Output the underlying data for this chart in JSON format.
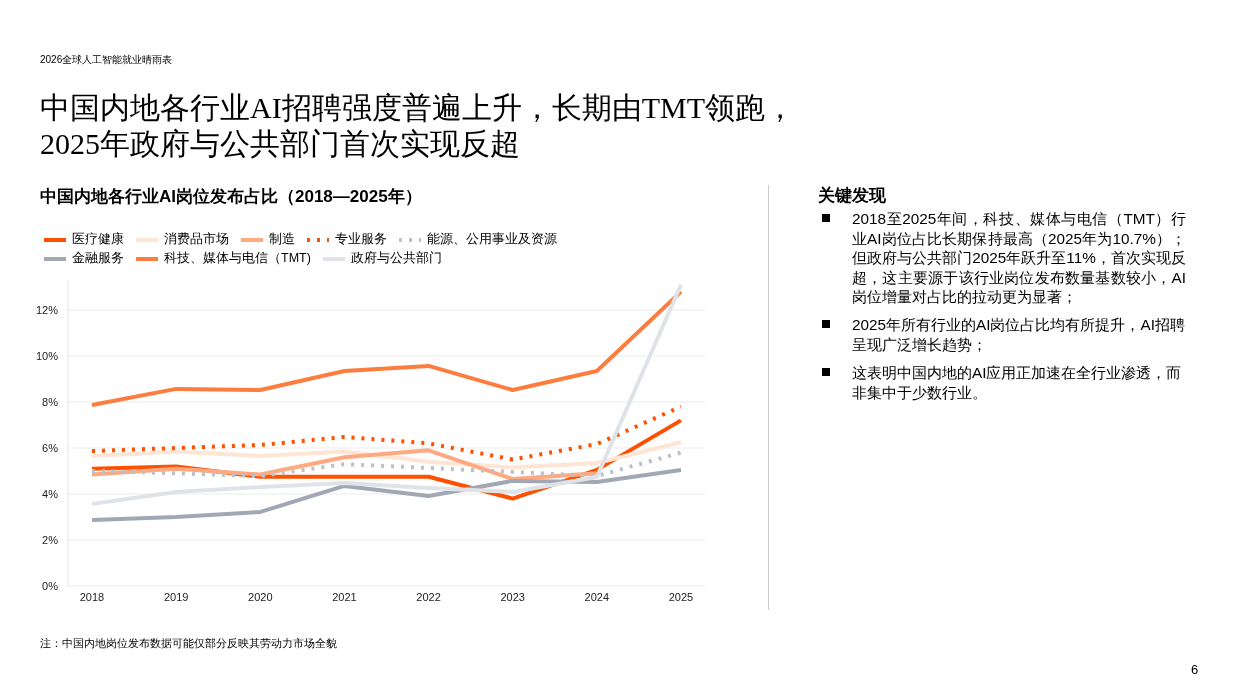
{
  "chart_data": {
    "type": "line",
    "title": "中国内地各行业AI招聘强度普遍上升，长期由TMT领跑，\n2025年政府与公共部门首次实现反超",
    "subtitle": "中国内地各行业AI岗位发布占比（2018—2025年）",
    "annotations": [
      "2026全球人工智能就业晴雨表",
      "关键发现",
      "2018至2025年间，科技、媒体与电信（TMT）行业AI岗位占比长期保持最高（2025年为10.7%）；但政府与公共部门2025年跃升至11%，首次实现反超，这主要源于该行业岗位发布数量基数较小，AI岗位增量对占比的拉动更为显著；",
      "2025年所有行业的AI岗位占比均有所提升，AI招聘呈现广泛增长趋势；",
      "这表明中国内地的AI应用正加速在全行业渗透，而非集中于少数行业。",
      "注：中国内地岗位发布数据可能仅部分反映其劳动力市场全貌",
      "6"
    ],
    "categories": [
      "2018",
      "2019",
      "2020",
      "2021",
      "2022",
      "2023",
      "2024",
      "2025"
    ],
    "series": [
      {
        "name": "医疗健康",
        "color": "#fe5000",
        "values": [
          5.1,
          5.2,
          4.75,
          4.75,
          4.75,
          3.8,
          5.05,
          7.2
        ]
      },
      {
        "name": "消费品市场",
        "color": "#ffe5d4",
        "values": [
          5.65,
          5.85,
          5.65,
          5.85,
          5.4,
          5.15,
          5.35,
          6.25
        ]
      },
      {
        "name": "制造",
        "color": "#ffa980",
        "values": [
          4.85,
          5.1,
          4.85,
          5.6,
          5.9,
          4.65,
          4.9,
          null
        ]
      },
      {
        "name": "专业服务",
        "color": "#fe5000",
        "line_style": "dotted",
        "values": [
          5.87,
          6.0,
          6.13,
          6.48,
          6.2,
          5.5,
          6.17,
          7.8
        ]
      },
      {
        "name": "能源、公用事业及资源",
        "color": "#bcc1c8",
        "line_style": "dotted",
        "values": [
          5.0,
          4.9,
          4.78,
          5.3,
          5.13,
          4.96,
          4.78,
          5.8
        ]
      },
      {
        "name": "金融服务",
        "color": "#a1a8b3",
        "values": [
          2.87,
          3.0,
          3.22,
          4.35,
          3.91,
          4.57,
          4.52,
          5.04
        ]
      },
      {
        "name": "科技、媒体与电信（TMT)",
        "color": "#fd7d3e",
        "values": [
          7.87,
          8.57,
          8.52,
          9.35,
          9.57,
          8.52,
          9.35,
          12.8
        ]
      },
      {
        "name": "政府与公共部门",
        "color": "#dfe3e8",
        "values": [
          3.57,
          4.09,
          4.3,
          4.48,
          4.26,
          4.09,
          4.74,
          13.1
        ]
      }
    ],
    "ylim": [
      0,
      13.3
    ],
    "yticks": [
      {
        "value": 0,
        "label": "0%"
      },
      {
        "value": 2,
        "label": "2%"
      },
      {
        "value": 4,
        "label": "4%"
      },
      {
        "value": 6,
        "label": "6%"
      },
      {
        "value": 8,
        "label": "8%"
      },
      {
        "value": 10,
        "label": "10%"
      },
      {
        "value": 12,
        "label": "12%"
      }
    ],
    "grid": "y",
    "legend": "top left",
    "line_style": "solid",
    "marker": "none"
  }
}
